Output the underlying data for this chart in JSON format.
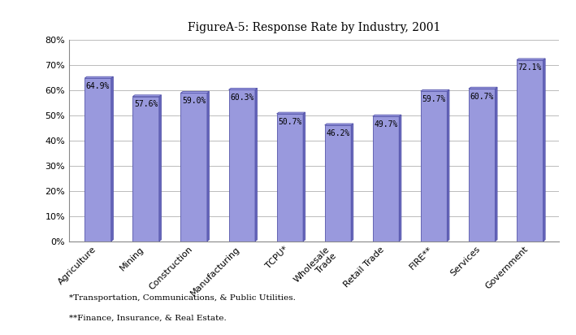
{
  "title": "FigureA-5: Response Rate by Industry, 2001",
  "categories": [
    "Agriculture",
    "Mining",
    "Construction",
    "Manufacturing",
    "TCPU*",
    "Wholesale\nTrade",
    "Retail Trade",
    "FIRE**",
    "Services",
    "Government"
  ],
  "values": [
    64.9,
    57.6,
    59.0,
    60.3,
    50.7,
    46.2,
    49.7,
    59.7,
    60.7,
    72.1
  ],
  "bar_color_face": "#9999DD",
  "bar_color_right": "#6666BB",
  "bar_color_top": "#AAAAEE",
  "bar_edge_color": "#5555AA",
  "ylim": [
    0,
    80
  ],
  "yticks": [
    0,
    10,
    20,
    30,
    40,
    50,
    60,
    70,
    80
  ],
  "ytick_labels": [
    "0%",
    "10%",
    "20%",
    "30%",
    "40%",
    "50%",
    "60%",
    "70%",
    "80%"
  ],
  "footnote1": "*Transportation, Communications, & Public Utilities.",
  "footnote2": "**Finance, Insurance, & Real Estate.",
  "label_fontsize": 7,
  "title_fontsize": 10,
  "tick_fontsize": 8,
  "background_color": "#FFFFFF",
  "grid_color": "#BBBBBB",
  "chart_bg_color": "#FFFFFF"
}
